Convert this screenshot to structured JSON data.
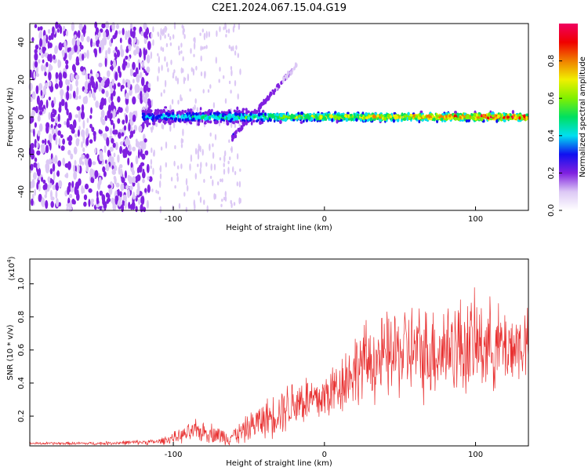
{
  "figure": {
    "title": "C2E1.2024.067.15.04.G19"
  },
  "chart_data": [
    {
      "type": "heatmap",
      "name": "spectrogram",
      "xlabel": "Height of straight line (km)",
      "ylabel": "Frequency (Hz)",
      "xlim": [
        -195,
        135
      ],
      "ylim": [
        -50,
        50
      ],
      "x_ticks": [
        -100,
        0,
        100
      ],
      "y_ticks": [
        -40,
        -20,
        0,
        20,
        40
      ],
      "colorbar": {
        "label": "Normalized spectral amplitude",
        "range": [
          0,
          1
        ],
        "ticks": [
          0.0,
          0.2,
          0.4,
          0.6,
          0.8
        ],
        "tick_labels": [
          "0.0",
          "0.2",
          "0.4",
          "0.6",
          "0.8"
        ],
        "colormap": [
          "#ffffff",
          "#dcc8f5",
          "#8020e0",
          "#1010f0",
          "#00e0f0",
          "#00e060",
          "#80f000",
          "#f0f000",
          "#f08000",
          "#f00000",
          "#f00060"
        ]
      },
      "features": {
        "noise_region_x": [
          -195,
          -115
        ],
        "signal_line_x": [
          -120,
          135
        ],
        "signal_line_freq_hz": 0,
        "drift_branch": {
          "x": [
            -62,
            -18
          ],
          "freq_hz": [
            -12,
            28
          ]
        }
      },
      "grid": false
    },
    {
      "type": "line",
      "name": "snr",
      "xlabel": "Height of straight line (km)",
      "ylabel": "SNR (10 * v/v)",
      "scale_label": "(x10",
      "scale_exponent": "4",
      "xlim": [
        -195,
        135
      ],
      "ylim": [
        0.02,
        1.15
      ],
      "x_ticks": [
        -100,
        0,
        100
      ],
      "y_ticks": [
        0.2,
        0.4,
        0.6,
        0.8,
        1.0
      ],
      "y_tick_labels": [
        "0.2",
        "0.4",
        "0.6",
        "0.8",
        "1.0"
      ],
      "series": [
        {
          "color": "#e83030",
          "x": [
            -195,
            -150,
            -110,
            -95,
            -85,
            -75,
            -65,
            -55,
            -45,
            -35,
            -25,
            -15,
            -5,
            5,
            15,
            25,
            35,
            45,
            55,
            65,
            75,
            85,
            95,
            105,
            115,
            125,
            135
          ],
          "y": [
            0.035,
            0.035,
            0.045,
            0.08,
            0.11,
            0.1,
            0.07,
            0.1,
            0.16,
            0.2,
            0.26,
            0.3,
            0.29,
            0.35,
            0.44,
            0.52,
            0.54,
            0.57,
            0.6,
            0.58,
            0.6,
            0.63,
            0.62,
            0.64,
            0.62,
            0.62,
            0.64
          ],
          "spread": [
            0.01,
            0.012,
            0.02,
            0.05,
            0.08,
            0.07,
            0.06,
            0.08,
            0.12,
            0.15,
            0.18,
            0.2,
            0.18,
            0.2,
            0.24,
            0.28,
            0.3,
            0.32,
            0.34,
            0.34,
            0.34,
            0.36,
            0.36,
            0.34,
            0.3,
            0.28,
            0.26
          ]
        }
      ],
      "grid": false
    }
  ]
}
